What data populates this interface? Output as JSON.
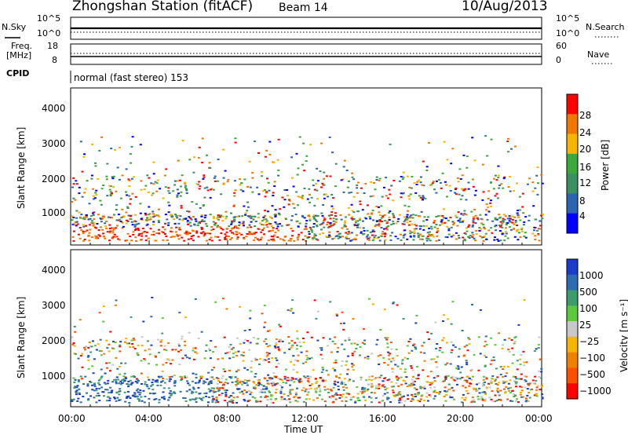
{
  "header": {
    "title": "Zhongshan Station (fitACF)",
    "beam": "Beam 14",
    "date": "10/Aug/2013"
  },
  "top_panels": {
    "nsky_label": "N.Sky",
    "nsearch_label": "N.Search",
    "noise_ticks_left": [
      "10^5",
      "10^0"
    ],
    "noise_ticks_right": [
      "10^5",
      "10^0"
    ],
    "freq_label_1": "Freq.",
    "freq_label_2": "[MHz]",
    "freq_ticks": [
      "18",
      "8"
    ],
    "nave_label": "Nave",
    "nave_ticks": [
      "60",
      "0"
    ],
    "cpid_label": "CPID",
    "cpid_text": "normal (fast stereo) 153"
  },
  "chart_data": [
    {
      "type": "heatmap",
      "name": "power",
      "ylabel": "Slant Range [km]",
      "y_ticks": [
        "1000",
        "2000",
        "3000",
        "4000"
      ],
      "ylim": [
        180,
        4700
      ],
      "colorbar_label": "Power [dB]",
      "colorbar_ticks": [
        "4",
        "8",
        "12",
        "16",
        "20",
        "24",
        "28"
      ],
      "colorbar_colors": [
        "#0000ff",
        "#2c64b4",
        "#3a9060",
        "#3ca83c",
        "#f5b400",
        "#f07800",
        "#ff0000"
      ]
    },
    {
      "type": "heatmap",
      "name": "velocity",
      "ylabel": "Slant Range [km]",
      "y_ticks": [
        "1000",
        "2000",
        "3000",
        "4000"
      ],
      "ylim": [
        180,
        4700
      ],
      "colorbar_label": "Velocity [m s⁻¹]",
      "colorbar_ticks": [
        "1000",
        "500",
        "100",
        "25",
        "−25",
        "−100",
        "−500",
        "−1000"
      ],
      "colorbar_colors": [
        "#1a3cc8",
        "#2c6cb0",
        "#3c9c6c",
        "#5cc83c",
        "#c8c8c8",
        "#f5b400",
        "#f08000",
        "#ff5000",
        "#ff0000"
      ]
    }
  ],
  "time_axis": {
    "ticks": [
      "00:00",
      "04:00",
      "08:00",
      "12:00",
      "16:00",
      "20:00",
      "00:00"
    ],
    "xlabel": "Time UT"
  }
}
